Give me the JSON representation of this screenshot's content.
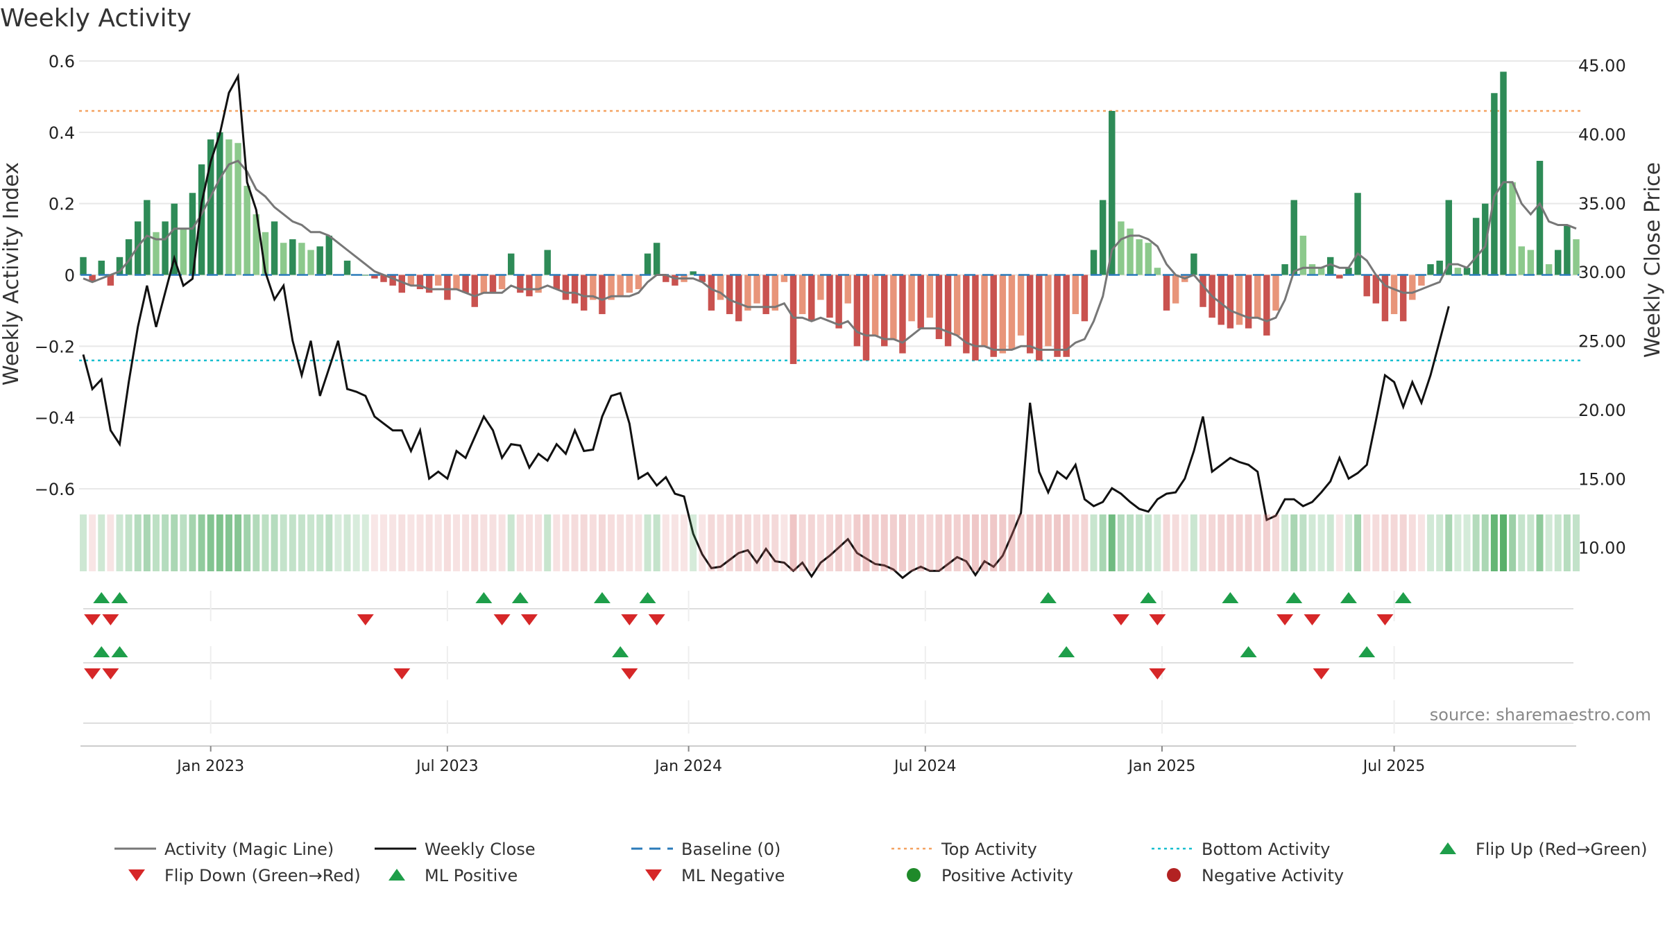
{
  "chart_data": {
    "type": "bar",
    "title": "Weekly Activity",
    "ylabel_left": "Weekly Activity Index",
    "ylabel_right": "Weekly Close Price",
    "ylim_left": [
      -0.6,
      0.6
    ],
    "ylim_right": [
      5,
      45
    ],
    "left_ticks": [
      "0.6",
      "0.4",
      "0.2",
      "0",
      "−0.2",
      "−0.4",
      "−0.6"
    ],
    "left_tick_values": [
      0.6,
      0.4,
      0.2,
      0,
      -0.2,
      -0.4,
      -0.6
    ],
    "right_ticks": [
      "45.00",
      "40.00",
      "35.00",
      "30.00",
      "25.00",
      "20.00",
      "15.00",
      "10.00"
    ],
    "right_tick_values": [
      45,
      40,
      35,
      30,
      25,
      20,
      15,
      10
    ],
    "x_ticks": [
      "Jan 2023",
      "Jul 2023",
      "Jan 2024",
      "Jul 2024",
      "Jan 2025",
      "Jul 2025"
    ],
    "x_tick_weeks": [
      14,
      40,
      66.5,
      92.5,
      118.5,
      144
    ],
    "top_activity": 0.46,
    "bottom_activity": -0.24,
    "activity": [
      0.05,
      -0.02,
      0.04,
      -0.03,
      0.05,
      0.1,
      0.15,
      0.21,
      0.12,
      0.15,
      0.2,
      0.13,
      0.23,
      0.31,
      0.38,
      0.4,
      0.38,
      0.37,
      0.25,
      0.17,
      0.12,
      0.15,
      0.09,
      0.1,
      0.09,
      0.07,
      0.08,
      0.11,
      0.0,
      0.04,
      0.0,
      0.0,
      -0.01,
      -0.02,
      -0.03,
      -0.05,
      -0.03,
      -0.04,
      -0.05,
      -0.03,
      -0.07,
      -0.04,
      -0.05,
      -0.09,
      -0.05,
      -0.05,
      -0.04,
      0.06,
      -0.05,
      -0.06,
      -0.05,
      0.07,
      -0.04,
      -0.07,
      -0.08,
      -0.1,
      -0.07,
      -0.11,
      -0.07,
      -0.06,
      -0.05,
      -0.04,
      0.06,
      0.09,
      -0.02,
      -0.03,
      -0.02,
      0.01,
      -0.02,
      -0.1,
      -0.07,
      -0.11,
      -0.13,
      -0.1,
      -0.08,
      -0.11,
      -0.1,
      -0.02,
      -0.25,
      -0.11,
      -0.13,
      -0.07,
      -0.12,
      -0.15,
      -0.08,
      -0.2,
      -0.24,
      -0.17,
      -0.2,
      -0.18,
      -0.22,
      -0.13,
      -0.15,
      -0.12,
      -0.18,
      -0.2,
      -0.17,
      -0.22,
      -0.24,
      -0.2,
      -0.23,
      -0.22,
      -0.21,
      -0.17,
      -0.22,
      -0.24,
      -0.2,
      -0.23,
      -0.23,
      -0.11,
      -0.13,
      0.07,
      0.21,
      0.46,
      0.15,
      0.13,
      0.1,
      0.09,
      0.02,
      -0.1,
      -0.08,
      -0.02,
      0.06,
      -0.09,
      -0.12,
      -0.14,
      -0.15,
      -0.14,
      -0.15,
      -0.12,
      -0.17,
      -0.1,
      0.03,
      0.21,
      0.11,
      0.03,
      0.02,
      0.05,
      -0.01,
      0.02,
      0.23,
      -0.06,
      -0.08,
      -0.13,
      -0.11,
      -0.13,
      -0.07,
      -0.03,
      0.03,
      0.04,
      0.21,
      0.02,
      0.02,
      0.16,
      0.2,
      0.51,
      0.57,
      0.26,
      0.08,
      0.07,
      0.32,
      0.03,
      0.07,
      0.14,
      0.1
    ],
    "close": [
      24.0,
      21.5,
      22.2,
      18.5,
      17.5,
      22.0,
      26.0,
      29.0,
      26.0,
      28.5,
      31.0,
      29.0,
      29.5,
      35.0,
      38.0,
      40.0,
      43.0,
      44.2,
      36.5,
      34.5,
      30.0,
      28.0,
      29.0,
      25.0,
      22.5,
      25.0,
      21.0,
      23.0,
      25.0,
      21.5,
      21.3,
      21.0,
      19.5,
      19.0,
      18.5,
      18.5,
      17.0,
      18.5,
      15.0,
      15.5,
      15.0,
      17.0,
      16.5,
      18.0,
      19.5,
      18.5,
      16.5,
      17.5,
      17.4,
      15.8,
      16.8,
      16.3,
      17.5,
      16.8,
      18.5,
      17.0,
      17.1,
      19.5,
      21.0,
      21.2,
      19.0,
      15.0,
      15.4,
      14.5,
      15.1,
      13.9,
      13.7,
      11.0,
      9.5,
      8.5,
      8.6,
      9.1,
      9.6,
      9.8,
      8.9,
      9.9,
      9.0,
      8.9,
      8.3,
      8.9,
      7.9,
      8.9,
      9.4,
      10.0,
      10.6,
      9.6,
      9.2,
      8.8,
      8.7,
      8.4,
      7.8,
      8.3,
      8.6,
      8.3,
      8.3,
      8.8,
      9.3,
      9.0,
      8.0,
      9.0,
      8.6,
      9.4,
      10.9,
      12.5,
      20.5,
      15.5,
      14.0,
      15.5,
      15.0,
      16.0,
      13.5,
      13.0,
      13.3,
      14.3,
      13.9,
      13.3,
      12.8,
      12.6,
      13.5,
      13.9,
      14.0,
      15.0,
      17.0,
      19.5,
      15.5,
      16.0,
      16.5,
      16.2,
      16.0,
      15.5,
      12.0,
      12.3,
      13.5,
      13.5,
      13.0,
      13.3,
      14.0,
      14.8,
      16.5,
      15.0,
      15.4,
      16.0,
      19.2,
      22.5,
      22.0,
      20.2,
      22.0,
      20.5,
      22.5,
      25.0,
      27.5
    ],
    "magic_line": [
      -0.01,
      -0.02,
      -0.01,
      0.0,
      0.01,
      0.04,
      0.08,
      0.11,
      0.1,
      0.1,
      0.13,
      0.13,
      0.13,
      0.17,
      0.22,
      0.27,
      0.31,
      0.32,
      0.29,
      0.24,
      0.22,
      0.19,
      0.17,
      0.15,
      0.14,
      0.12,
      0.12,
      0.11,
      0.09,
      0.07,
      0.05,
      0.03,
      0.01,
      0.0,
      -0.01,
      -0.02,
      -0.03,
      -0.03,
      -0.04,
      -0.04,
      -0.04,
      -0.04,
      -0.05,
      -0.06,
      -0.05,
      -0.05,
      -0.05,
      -0.03,
      -0.04,
      -0.04,
      -0.04,
      -0.03,
      -0.04,
      -0.05,
      -0.05,
      -0.06,
      -0.06,
      -0.07,
      -0.06,
      -0.06,
      -0.06,
      -0.05,
      -0.02,
      0.0,
      0.0,
      -0.01,
      -0.01,
      -0.01,
      -0.02,
      -0.04,
      -0.05,
      -0.07,
      -0.08,
      -0.09,
      -0.09,
      -0.09,
      -0.09,
      -0.08,
      -0.12,
      -0.12,
      -0.13,
      -0.12,
      -0.13,
      -0.14,
      -0.13,
      -0.16,
      -0.17,
      -0.17,
      -0.18,
      -0.18,
      -0.19,
      -0.17,
      -0.15,
      -0.15,
      -0.15,
      -0.16,
      -0.17,
      -0.19,
      -0.2,
      -0.2,
      -0.21,
      -0.21,
      -0.21,
      -0.2,
      -0.2,
      -0.21,
      -0.21,
      -0.21,
      -0.21,
      -0.19,
      -0.18,
      -0.13,
      -0.06,
      0.07,
      0.1,
      0.11,
      0.11,
      0.1,
      0.08,
      0.03,
      0.0,
      -0.01,
      0.0,
      -0.03,
      -0.06,
      -0.08,
      -0.1,
      -0.11,
      -0.12,
      -0.12,
      -0.13,
      -0.12,
      -0.07,
      0.01,
      0.02,
      0.02,
      0.02,
      0.03,
      0.02,
      0.02,
      0.06,
      0.04,
      0.0,
      -0.03,
      -0.04,
      -0.05,
      -0.05,
      -0.04,
      -0.03,
      -0.02,
      0.03,
      0.03,
      0.02,
      0.05,
      0.08,
      0.22,
      0.26,
      0.26,
      0.2,
      0.17,
      0.2,
      0.15,
      0.14,
      0.14,
      0.13
    ],
    "ml_pos_row1": [
      2,
      4,
      44,
      48,
      57,
      62,
      106,
      117,
      126,
      133,
      139,
      145
    ],
    "ml_neg_row1": [
      1,
      3,
      31,
      46,
      49,
      60,
      63,
      114,
      118,
      132,
      135,
      143
    ],
    "ml_pos_row2": [
      2,
      4,
      59,
      108,
      128,
      141
    ],
    "ml_neg_row2": [
      1,
      3,
      35,
      60,
      118,
      136
    ],
    "source": "source: sharemaestro.com",
    "legend": [
      {
        "label": "Activity (Magic Line)",
        "marker": "line",
        "color": "#777777"
      },
      {
        "label": "Weekly Close",
        "marker": "line",
        "color": "#111111"
      },
      {
        "label": "Baseline (0)",
        "marker": "dash",
        "color": "#2b7bba"
      },
      {
        "label": "Top Activity",
        "marker": "dot-line",
        "color": "#f4a261"
      },
      {
        "label": "Bottom Activity",
        "marker": "dot-line",
        "color": "#17becf"
      },
      {
        "label": "Flip Up (Red→Green)",
        "marker": "tri-up",
        "color": "#1e9e4a"
      },
      {
        "label": "Flip Down (Green→Red)",
        "marker": "tri-down",
        "color": "#d62728"
      },
      {
        "label": "ML Positive",
        "marker": "tri-up",
        "color": "#1e9e4a"
      },
      {
        "label": "ML Negative",
        "marker": "tri-down",
        "color": "#d62728"
      },
      {
        "label": "Positive Activity",
        "marker": "circle",
        "color": "#1f8a2a"
      },
      {
        "label": "Negative Activity",
        "marker": "circle",
        "color": "#b22222"
      }
    ],
    "colors": {
      "pos_strong": "#2e8b57",
      "pos_light": "#8cc98c",
      "neg_strong": "#c9524f",
      "neg_light": "#e8957a",
      "grid": "#e8e8e8"
    }
  }
}
